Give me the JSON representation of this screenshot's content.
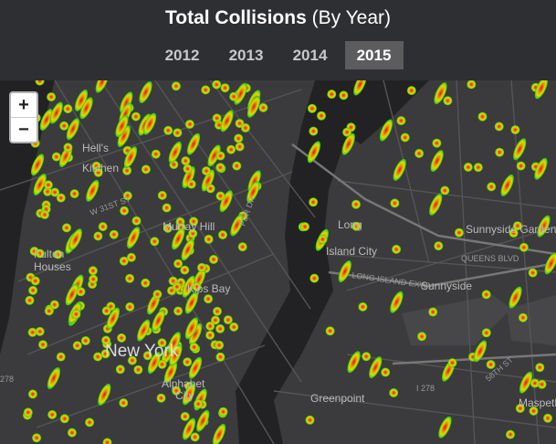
{
  "header": {
    "title": "Total Collisions",
    "subtitle": "(By Year)",
    "years": [
      "2012",
      "2013",
      "2014",
      "2015"
    ],
    "active_year": "2015"
  },
  "zoom": {
    "in": "+",
    "out": "−"
  },
  "map": {
    "labels": [
      "Hell's",
      "Kitchen",
      "Fulton",
      "Houses",
      "W 31ST ST",
      "Murray Hill",
      "Kips Bay",
      "New York",
      "Alphabet",
      "City",
      "Long",
      "Island City",
      "Sunnyside",
      "Sunnyside Gardens",
      "LONG ISLAND EXWY",
      "QUEENS BLVD",
      "Greenpoint",
      "Maspeth",
      "I 278",
      "278",
      "FDR DR",
      "56TH ST"
    ]
  }
}
